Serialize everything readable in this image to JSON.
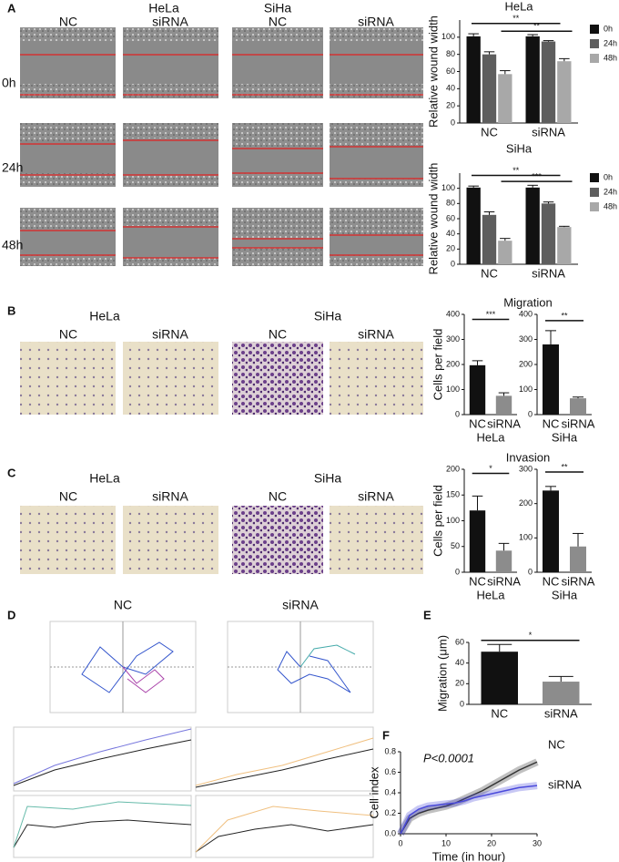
{
  "figure": {
    "panels": [
      "A",
      "B",
      "C",
      "D",
      "E",
      "F"
    ],
    "A": {
      "cell_lines": [
        "HeLa",
        "SiHa"
      ],
      "groups": [
        "NC",
        "siRNA",
        "NC",
        "siRNA"
      ],
      "times": [
        "0h",
        "24h",
        "48h"
      ]
    },
    "B": {
      "cell_lines": [
        "HeLa",
        "SiHa"
      ],
      "groups": [
        "NC",
        "siRNA",
        "NC",
        "siRNA"
      ]
    },
    "C": {
      "cell_lines": [
        "HeLa",
        "SiHa"
      ],
      "groups": [
        "NC",
        "siRNA",
        "NC",
        "siRNA"
      ]
    },
    "D": {
      "groups": [
        "NC",
        "siRNA"
      ]
    }
  },
  "chart_data": [
    {
      "type": "bar",
      "title": "HeLa",
      "ylabel": "Relative wound width",
      "categories": [
        "NC",
        "siRNA"
      ],
      "series": [
        {
          "name": "0h",
          "color": "#111111",
          "values": [
            101,
            101
          ],
          "errors": [
            3,
            2
          ]
        },
        {
          "name": "24h",
          "color": "#5e5e5e",
          "values": [
            80,
            95
          ],
          "errors": [
            3,
            1
          ]
        },
        {
          "name": "48h",
          "color": "#a8a8a8",
          "values": [
            57,
            72
          ],
          "errors": [
            4,
            3
          ]
        }
      ],
      "ylim": [
        0,
        120
      ],
      "yticks": [
        0,
        20,
        40,
        60,
        80,
        100
      ],
      "annotations": [
        "**",
        "**"
      ],
      "legend": "right"
    },
    {
      "type": "bar",
      "title": "SiHa",
      "ylabel": "Relative wound width",
      "categories": [
        "NC",
        "siRNA"
      ],
      "series": [
        {
          "name": "0h",
          "color": "#111111",
          "values": [
            101,
            101
          ],
          "errors": [
            2,
            3
          ]
        },
        {
          "name": "24h",
          "color": "#5e5e5e",
          "values": [
            65,
            80
          ],
          "errors": [
            4,
            2
          ]
        },
        {
          "name": "48h",
          "color": "#a8a8a8",
          "values": [
            31,
            49
          ],
          "errors": [
            3,
            1
          ]
        }
      ],
      "ylim": [
        0,
        120
      ],
      "yticks": [
        0,
        20,
        40,
        60,
        80,
        100
      ],
      "annotations": [
        "**",
        "***"
      ],
      "legend": "right"
    },
    {
      "type": "bar",
      "title": "Migration",
      "ylabel": "Cells per field",
      "xlabel": "HeLa",
      "categories": [
        "NC",
        "siRNA"
      ],
      "values": [
        197,
        75
      ],
      "errors": [
        18,
        12
      ],
      "colors": [
        "#111111",
        "#8c8c8c"
      ],
      "ylim": [
        0,
        400
      ],
      "yticks": [
        0,
        100,
        200,
        300,
        400
      ],
      "annotations": [
        "***"
      ]
    },
    {
      "type": "bar",
      "xlabel": "SiHa",
      "categories": [
        "NC",
        "siRNA"
      ],
      "values": [
        280,
        65
      ],
      "errors": [
        55,
        5
      ],
      "colors": [
        "#111111",
        "#8c8c8c"
      ],
      "ylim": [
        0,
        400
      ],
      "yticks": [
        0,
        100,
        200,
        300,
        400
      ],
      "annotations": [
        "**"
      ]
    },
    {
      "type": "bar",
      "title": "Invasion",
      "ylabel": "Cells per field",
      "xlabel": "HeLa",
      "categories": [
        "NC",
        "siRNA"
      ],
      "values": [
        120,
        42
      ],
      "errors": [
        28,
        14
      ],
      "colors": [
        "#111111",
        "#8c8c8c"
      ],
      "ylim": [
        0,
        200
      ],
      "yticks": [
        0,
        50,
        100,
        150,
        200
      ],
      "annotations": [
        "*"
      ]
    },
    {
      "type": "bar",
      "xlabel": "SiHa",
      "categories": [
        "NC",
        "siRNA"
      ],
      "values": [
        238,
        75
      ],
      "errors": [
        12,
        38
      ],
      "colors": [
        "#111111",
        "#8c8c8c"
      ],
      "ylim": [
        0,
        300
      ],
      "yticks": [
        0,
        100,
        200,
        300
      ],
      "annotations": [
        "**"
      ]
    },
    {
      "type": "bar",
      "ylabel": "Migration (μm)",
      "categories": [
        "NC",
        "siRNA"
      ],
      "values": [
        51,
        22
      ],
      "errors": [
        7,
        5
      ],
      "colors": [
        "#111111",
        "#8c8c8c"
      ],
      "ylim": [
        0,
        60
      ],
      "yticks": [
        0,
        20,
        40,
        60
      ],
      "annotations": [
        "*"
      ]
    },
    {
      "type": "line",
      "ylabel": "Cell index",
      "xlabel": "Time (in hour)",
      "annotations": [
        "P<0.0001"
      ],
      "x": [
        0,
        2,
        4,
        6,
        8,
        10,
        12,
        14,
        16,
        18,
        20,
        22,
        24,
        26,
        28,
        30
      ],
      "series": [
        {
          "name": "NC",
          "color": "#333333",
          "values": [
            0,
            0.15,
            0.2,
            0.23,
            0.25,
            0.27,
            0.3,
            0.34,
            0.38,
            0.42,
            0.47,
            0.52,
            0.57,
            0.62,
            0.66,
            0.7
          ]
        },
        {
          "name": "siRNA",
          "color": "#4a4adb",
          "values": [
            0,
            0.18,
            0.24,
            0.27,
            0.28,
            0.29,
            0.3,
            0.32,
            0.35,
            0.37,
            0.39,
            0.41,
            0.43,
            0.45,
            0.46,
            0.47
          ]
        }
      ],
      "xlim": [
        0,
        30
      ],
      "xticks": [
        0,
        10,
        20,
        30
      ],
      "ylim": [
        0,
        0.8
      ],
      "yticks": [
        {
          "value": 0,
          "label": "0.0"
        },
        0.2,
        0.4,
        0.6,
        0.8
      ]
    }
  ]
}
